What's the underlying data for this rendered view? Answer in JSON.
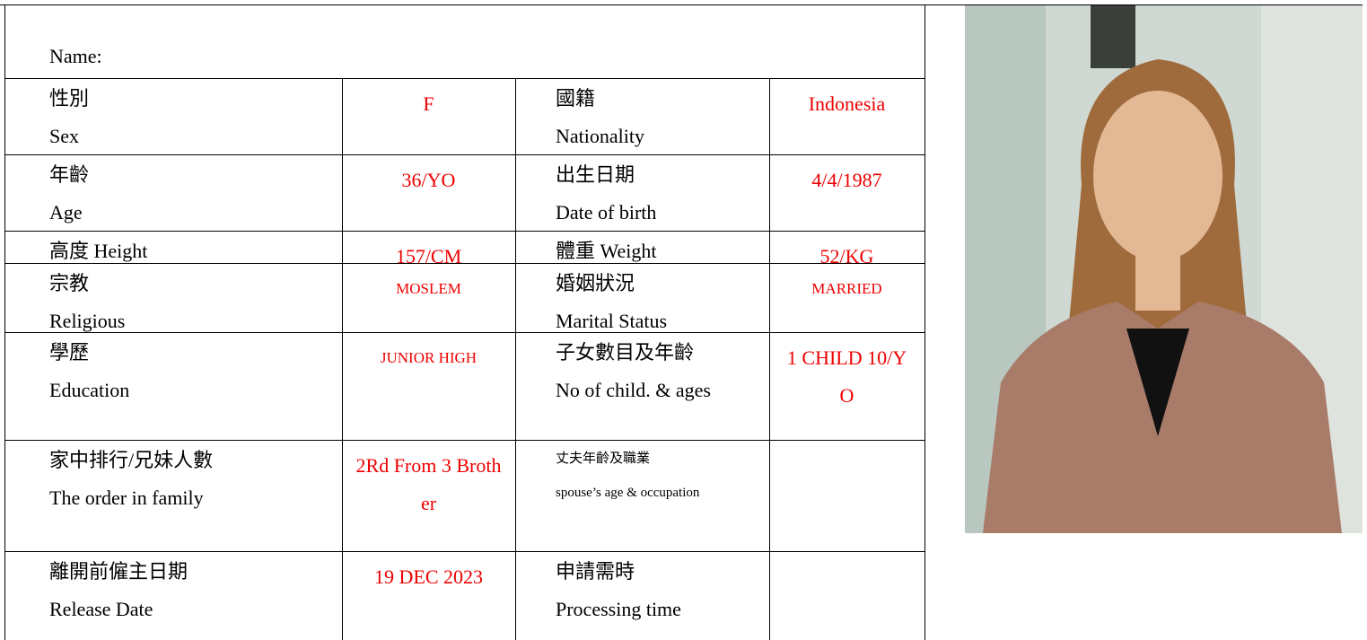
{
  "name_label": "Name:",
  "rows": [
    {
      "left": [
        "性別",
        "Sex"
      ],
      "left_value": "F",
      "right": [
        "國籍",
        "Nationality"
      ],
      "right_value": "Indonesia"
    },
    {
      "left": [
        "年齡",
        "Age"
      ],
      "left_value": "36/YO",
      "right": [
        "出生日期",
        "Date of birth"
      ],
      "right_value": "4/4/1987"
    },
    {
      "left": [
        "高度 Height"
      ],
      "left_value": "157/CM",
      "right": [
        "體重 Weight"
      ],
      "right_value": "52/KG"
    },
    {
      "left": [
        "宗教",
        "Religious"
      ],
      "left_value": "MOSLEM",
      "right": [
        "婚姻狀況",
        "Marital Status"
      ],
      "right_value": "MARRIED"
    },
    {
      "left": [
        "學歷",
        "Education"
      ],
      "left_value": "JUNIOR HIGH",
      "right": [
        "子女數目及年齡",
        "No of child. & ages"
      ],
      "right_value": "1 CHILD 10/YO"
    },
    {
      "left": [
        "家中排行/兄妹人數",
        "The order in family"
      ],
      "left_value": "2Rd From 3 Brother",
      "right": [
        "丈夫年齡及職業",
        "spouse’s age & occupation"
      ]
    },
    {
      "left": [
        "離開前僱主日期",
        "Release Date"
      ],
      "left_value": "19 DEC 2023",
      "right": [
        "申請需時",
        "Processing time"
      ]
    }
  ]
}
